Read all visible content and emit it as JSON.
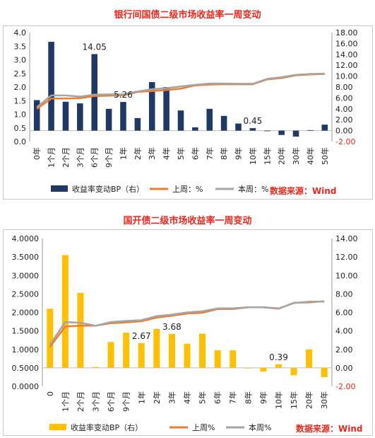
{
  "chart_data": [
    {
      "type": "bar",
      "title": "银行间国债二级市场收益率一周变动",
      "categories": [
        "0年",
        "1个月",
        "2个月",
        "3个月",
        "6个月",
        "9个月",
        "1年",
        "2年",
        "3年",
        "4年",
        "5年",
        "6年",
        "7年",
        "8年",
        "9年",
        "10年",
        "15年",
        "20年",
        "30年",
        "40年",
        "50年"
      ],
      "left_axis": {
        "ylim": [
          0,
          4.0
        ],
        "ticks": [
          "4.0",
          "3.5",
          "3.0",
          "2.5",
          "2.0",
          "1.5",
          "1.0",
          "0.5",
          "0.0"
        ]
      },
      "right_axis": {
        "ylim": [
          -2.0,
          18.0
        ],
        "ticks": [
          "18.00",
          "16.00",
          "14.00",
          "12.00",
          "10.00",
          "8.00",
          "6.00",
          "4.00",
          "2.00",
          "0.00",
          "-2.00"
        ]
      },
      "bar_colors": [
        "#1f3864"
      ],
      "series": [
        {
          "name": "收益率变动BP（右）",
          "kind": "bar",
          "axis": "right",
          "values": [
            5.6,
            16.3,
            5.3,
            5.0,
            14.05,
            4.0,
            5.26,
            2.3,
            8.9,
            8.0,
            3.7,
            0.6,
            4.0,
            2.7,
            1.3,
            0.45,
            -0.1,
            -0.8,
            -1.1,
            0.1,
            1.1
          ]
        },
        {
          "name": "上周：%",
          "kind": "line",
          "axis": "left",
          "values": [
            1.2,
            1.58,
            1.58,
            1.59,
            1.67,
            1.68,
            1.7,
            1.82,
            1.85,
            1.89,
            1.94,
            2.06,
            2.09,
            2.1,
            2.1,
            2.1,
            2.28,
            2.33,
            2.43,
            2.46,
            2.48
          ]
        },
        {
          "name": "本周：%",
          "kind": "line",
          "axis": "left",
          "values": [
            1.26,
            1.69,
            1.69,
            1.65,
            1.72,
            1.73,
            1.73,
            1.84,
            1.92,
            1.96,
            2.02,
            2.08,
            2.13,
            2.13,
            2.12,
            2.12,
            2.3,
            2.36,
            2.45,
            2.48,
            2.49
          ]
        }
      ],
      "line_colors": [
        "#ed7d31",
        "#a5a5a5"
      ],
      "data_labels": [
        {
          "series": 0,
          "index": 4,
          "text": "14.05"
        },
        {
          "series": 0,
          "index": 6,
          "text": "5.26"
        },
        {
          "series": 0,
          "index": 15,
          "text": "0.45"
        }
      ],
      "legend": {
        "position": "bottom",
        "items": [
          "收益率变动BP（右）",
          "上周：%",
          "本周：%"
        ]
      },
      "source_note": "数据来源：Wind",
      "grid": false
    },
    {
      "type": "bar",
      "title": "国开债二级市场收益率一周变动",
      "categories": [
        "0",
        "1个月",
        "2个月",
        "3个月",
        "6个月",
        "9个月",
        "1年",
        "2年",
        "3年",
        "4年",
        "5年",
        "6年",
        "7年",
        "8年",
        "9年",
        "10年",
        "15年",
        "20年",
        "30年"
      ],
      "left_axis": {
        "ylim": [
          0,
          4.0
        ],
        "ticks": [
          "4.0000",
          "3.5000",
          "3.0000",
          "2.5000",
          "2.0000",
          "1.5000",
          "1.0000",
          "0.5000",
          "0.0000"
        ]
      },
      "right_axis": {
        "ylim": [
          -2.0,
          14.0
        ],
        "ticks": [
          "14.00",
          "12.00",
          "10.00",
          "8.00",
          "6.00",
          "4.00",
          "2.00",
          "0.00",
          "-2.00"
        ]
      },
      "bar_colors": [
        "#ffc000"
      ],
      "series": [
        {
          "name": "收益率变动BP（右）",
          "kind": "bar",
          "axis": "right",
          "values": [
            6.4,
            12.2,
            8.1,
            0.1,
            2.8,
            3.8,
            2.67,
            4.2,
            3.68,
            2.6,
            3.7,
            1.9,
            1.9,
            0.0,
            -0.4,
            0.39,
            -0.8,
            2.0,
            -1.0
          ]
        },
        {
          "name": "上周%",
          "kind": "line",
          "axis": "left",
          "values": [
            1.07,
            1.62,
            1.64,
            1.64,
            1.71,
            1.73,
            1.76,
            1.86,
            1.91,
            1.97,
            1.99,
            2.09,
            2.09,
            2.14,
            2.14,
            2.1,
            2.26,
            2.27,
            2.3
          ]
        },
        {
          "name": "本周%",
          "kind": "line",
          "axis": "left",
          "values": [
            1.13,
            1.74,
            1.72,
            1.64,
            1.74,
            1.77,
            1.79,
            1.9,
            1.94,
            2.0,
            2.03,
            2.11,
            2.11,
            2.14,
            2.14,
            2.11,
            2.25,
            2.29,
            2.29
          ]
        }
      ],
      "line_colors": [
        "#ed7d31",
        "#a5a5a5"
      ],
      "data_labels": [
        {
          "series": 0,
          "index": 6,
          "text": "2.67"
        },
        {
          "series": 0,
          "index": 8,
          "text": "3.68"
        },
        {
          "series": 0,
          "index": 15,
          "text": "0.39"
        }
      ],
      "legend": {
        "position": "bottom",
        "items": [
          "收益率变动BP（右）",
          "上周%",
          "本周%"
        ]
      },
      "source_note": "数据来源：Wind",
      "grid": false
    }
  ]
}
